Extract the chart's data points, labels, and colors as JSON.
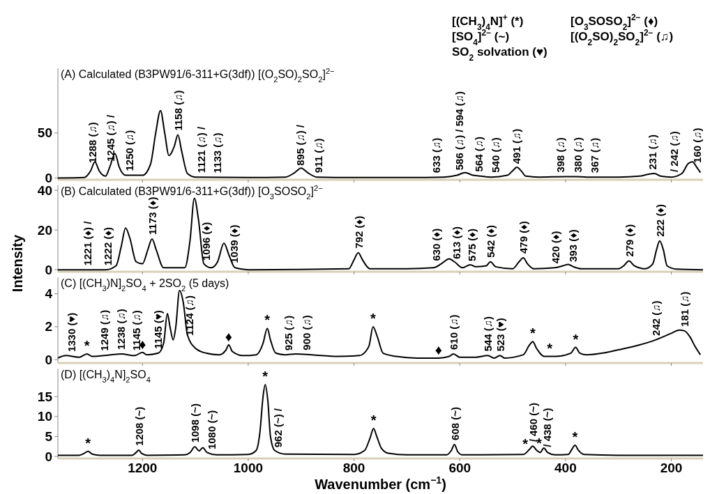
{
  "chart_data": [
    {
      "type": "line",
      "title": "(A) Calculated (B3PW91/6-311+G(3df)) [(O$_{2}$SO)$_{2}$SO$_{2}$]$^{2−}$",
      "ylabel": "Intensity",
      "xlim": [
        1360,
        140
      ],
      "xticks": [
        1200,
        1000,
        800,
        600,
        400,
        200
      ],
      "ylim": [
        -2,
        122
      ],
      "yticks": [
        0,
        50
      ],
      "tick_labels": "y",
      "series": [
        {
          "color": "#000000",
          "x": [
            1360,
            1310,
            1298,
            1290,
            1282,
            1270,
            1262,
            1252,
            1244,
            1232,
            1200,
            1185,
            1175,
            1166,
            1158,
            1150,
            1140,
            1133,
            1126,
            1115,
            1100,
            1000,
            930,
            912,
            900,
            888,
            870,
            800,
            700,
            630,
            605,
            590,
            575,
            560,
            540,
            510,
            500,
            492,
            484,
            475,
            450,
            400,
            380,
            360,
            300,
            260,
            245,
            232,
            220,
            200,
            180,
            168,
            160,
            152,
            145
          ],
          "values": [
            0,
            0.5,
            8,
            18,
            8,
            2,
            12,
            27,
            12,
            3,
            3,
            15,
            50,
            75,
            50,
            25,
            35,
            48,
            30,
            5,
            1,
            0.5,
            1,
            6,
            11,
            6,
            1,
            0.5,
            0.5,
            1,
            3,
            6,
            3,
            2,
            1,
            3,
            8,
            12,
            8,
            2,
            1,
            1.5,
            1.5,
            1,
            1,
            2,
            4,
            5,
            2,
            1,
            5,
            16,
            18,
            12,
            6
          ]
        }
      ],
      "annotations": [
        "[(CH$_{3}$)$_{4}$N]$^{+}$ (*)",
        "[SO$_{4}$]$^{2−}$ (~)",
        "SO$_{2}$ solvation (♥)",
        "[O$_{3}$SOSO$_{2}$]$^{2−}$ (♦)",
        "[(O$_{2}$SO)$_{2}$SO$_{2}$]$^{2−}$ (♫)",
        {
          "text": "1288 (♫)",
          "x": 1295,
          "y": 12
        },
        {
          "text": "1245 (♫) /",
          "x": 1261,
          "y": 13.5
        },
        {
          "text": "1250 (♫)",
          "x": 1225,
          "y": 3
        },
        {
          "text": "1158 (♫)",
          "x": 1133,
          "y": 48
        },
        {
          "text": "1121 (♫) /",
          "x": 1089,
          "y": 1
        },
        {
          "text": "1133 (♫)",
          "x": 1059,
          "y": 0.8
        },
        {
          "text": "895 (♫) /",
          "x": 902,
          "y": 9
        },
        {
          "text": "911 (♫)",
          "x": 868,
          "y": 1
        },
        {
          "text": "633 (♫)",
          "x": 645,
          "y": 1
        },
        {
          "text": "586 (♫) / 594 (♫)",
          "x": 601,
          "y": 4
        },
        {
          "text": "564 (♫)",
          "x": 565,
          "y": 2.3
        },
        {
          "text": "540 (♫)",
          "x": 533,
          "y": 1.3
        },
        {
          "text": "491 (♫)",
          "x": 494,
          "y": 11
        },
        {
          "text": "398 (♫)",
          "x": 410,
          "y": 1.4
        },
        {
          "text": "380 (♫)",
          "x": 378,
          "y": 1.5
        },
        {
          "text": "367 (♫)",
          "x": 346,
          "y": 1
        },
        {
          "text": "231 (♫)",
          "x": 236,
          "y": 4.6
        },
        {
          "text": "/ 242 (♫)",
          "x": 196,
          "y": 1.8
        },
        {
          "text": "160 (♫)",
          "x": 152,
          "y": 12
        }
      ]
    },
    {
      "type": "line",
      "title": "(B) Calculated (B3PW91/6-311+G(3df)) [O$_{3}$SOSO$_{2}$]$^{2−}$",
      "xlim": [
        1360,
        140
      ],
      "xticks": [
        1200,
        1000,
        800,
        600,
        400,
        200
      ],
      "ylim": [
        -1,
        42.5
      ],
      "yticks": [
        0,
        20,
        40
      ],
      "tick_labels": "y",
      "series": [
        {
          "color": "#000000",
          "x": [
            1360,
            1270,
            1250,
            1240,
            1232,
            1224,
            1212,
            1200,
            1190,
            1182,
            1174,
            1160,
            1120,
            1110,
            1102,
            1094,
            1084,
            1070,
            1058,
            1046,
            1036,
            1025,
            1000,
            810,
            800,
            792,
            784,
            770,
            700,
            650,
            635,
            620,
            610,
            595,
            580,
            570,
            550,
            542,
            532,
            500,
            488,
            480,
            472,
            460,
            420,
            405,
            395,
            385,
            370,
            300,
            290,
            280,
            270,
            250,
            235,
            228,
            222,
            215,
            208,
            190,
            140
          ],
          "values": [
            0,
            0,
            2,
            12,
            21,
            16,
            4,
            3,
            10,
            15.5,
            10,
            1,
            1,
            15,
            36,
            25,
            3,
            1,
            4,
            13.4,
            7,
            1,
            0,
            0.5,
            5,
            8.6,
            5,
            0.5,
            0.5,
            1,
            3,
            5.5,
            4,
            1,
            2.5,
            1.5,
            2,
            4,
            1.5,
            0.5,
            4,
            6,
            3,
            0.5,
            1,
            2,
            2.7,
            1.5,
            0.5,
            0.5,
            2,
            4.4,
            2,
            0.5,
            3,
            10,
            14.5,
            10,
            2,
            0.3,
            0
          ]
        }
      ],
      "annotations": [
        {
          "text": "1221 (♦) /",
          "x": 1305,
          "y": 0
        },
        {
          "text": "1222 (♦)",
          "x": 1267,
          "y": 0
        },
        {
          "text": "1173 (♦)",
          "x": 1182,
          "y": 15.5
        },
        {
          "text": "1096 (♦)",
          "x": 1080,
          "y": 2.5
        },
        {
          "text": "1039 (♦)",
          "x": 1027,
          "y": 1.2
        },
        {
          "text": "792 (♦)",
          "x": 792,
          "y": 8.6
        },
        {
          "text": "630 (♦)",
          "x": 645,
          "y": 2.3
        },
        {
          "text": "613 (♦)",
          "x": 607,
          "y": 3.3
        },
        {
          "text": "575 (♦)",
          "x": 578,
          "y": 2.2
        },
        {
          "text": "542 (♦)",
          "x": 542,
          "y": 4
        },
        {
          "text": "479 (♦)",
          "x": 480,
          "y": 6
        },
        {
          "text": "420 (♦)",
          "x": 419,
          "y": 1
        },
        {
          "text": "393 (♦)",
          "x": 387,
          "y": 1.8
        },
        {
          "text": "279 (♦)",
          "x": 280,
          "y": 4.4
        },
        {
          "text": "222 (♦)",
          "x": 222,
          "y": 14.5
        }
      ]
    },
    {
      "type": "line",
      "title": "(C) [(CH$_{3}$)N]$_{2}$SO$_{4}$ + 2SO$_{2}$ (5 days)",
      "xlim": [
        1360,
        140
      ],
      "xticks": [
        1200,
        1000,
        800,
        600,
        400,
        200
      ],
      "ylim": [
        -0.2,
        5
      ],
      "yticks": [
        0,
        2,
        4
      ],
      "tick_labels": "y",
      "series": [
        {
          "color": "#000000",
          "x": [
            1360,
            1345,
            1320,
            1305,
            1295,
            1260,
            1240,
            1215,
            1200,
            1192,
            1170,
            1160,
            1153,
            1148,
            1142,
            1137,
            1130,
            1123,
            1115,
            1100,
            1080,
            1055,
            1042,
            1037,
            1030,
            1010,
            985,
            972,
            964,
            958,
            948,
            930,
            910,
            880,
            830,
            790,
            772,
            764,
            756,
            745,
            720,
            680,
            640,
            620,
            612,
            600,
            570,
            547,
            535,
            524,
            515,
            480,
            468,
            462,
            455,
            440,
            420,
            390,
            381,
            373,
            360,
            330,
            300,
            260,
            230,
            200,
            185,
            175,
            165,
            155,
            145
          ],
          "values": [
            0.1,
            0.25,
            0.15,
            0.35,
            0.2,
            0.3,
            0.35,
            0.25,
            0.45,
            0.3,
            0.4,
            1.0,
            2.8,
            2.0,
            1.2,
            2.0,
            4.2,
            3.5,
            1.5,
            0.7,
            0.4,
            0.3,
            0.6,
            0.9,
            0.5,
            0.25,
            0.3,
            1.0,
            1.9,
            1.2,
            0.4,
            0.3,
            0.35,
            0.3,
            0.2,
            0.25,
            0.8,
            2.0,
            1.4,
            0.4,
            0.2,
            0.1,
            0.1,
            0.2,
            0.35,
            0.15,
            0.15,
            0.25,
            0.1,
            0.25,
            0.1,
            0.3,
            0.9,
            1.1,
            0.7,
            0.2,
            0.2,
            0.4,
            0.75,
            0.4,
            0.3,
            0.4,
            0.6,
            0.9,
            1.2,
            1.6,
            1.8,
            1.75,
            1.4,
            0.8,
            0.3
          ]
        }
      ],
      "annotations": [
        {
          "text": "1330 (♥)",
          "x": 1335,
          "y": 0.22
        },
        {
          "text": "*",
          "x": 1305,
          "y": 0.35
        },
        {
          "text": "1249 (♫)",
          "x": 1273,
          "y": 0.28
        },
        {
          "text": "1238 (♫)",
          "x": 1241,
          "y": 0.35
        },
        {
          "text": "♦",
          "x": 1200,
          "y": 0.45
        },
        {
          "text": "1145 (♫)",
          "x": 1212,
          "y": 0.3
        },
        {
          "text": "1145 (♥)",
          "x": 1171,
          "y": 0.4
        },
        {
          "text": "1124 (♫)",
          "x": 1112,
          "y": 1.2
        },
        {
          "text": "♦",
          "x": 1037,
          "y": 0.9
        },
        {
          "text": "*",
          "x": 964,
          "y": 1.9
        },
        {
          "text": "925 (♫)",
          "x": 925,
          "y": 0.3
        },
        {
          "text": "900 (♫)",
          "x": 891,
          "y": 0.32
        },
        {
          "text": "*",
          "x": 764,
          "y": 2.0
        },
        {
          "text": "♦",
          "x": 640,
          "y": 0.1
        },
        {
          "text": "610 (♫)",
          "x": 612,
          "y": 0.35
        },
        {
          "text": "544 (♫)",
          "x": 547,
          "y": 0.25
        },
        {
          "text": "523 (♥)",
          "x": 524,
          "y": 0.25
        },
        {
          "text": "*",
          "x": 462,
          "y": 1.1
        },
        {
          "text": "*",
          "x": 430,
          "y": 0.2
        },
        {
          "text": "*",
          "x": 381,
          "y": 0.75
        },
        {
          "text": "242 (♫)",
          "x": 230,
          "y": 1.2
        },
        {
          "text": "181 (♫)",
          "x": 175,
          "y": 1.75
        }
      ]
    },
    {
      "type": "line",
      "title": "(D) [(CH$_{3}$)$_{4}$N]$_{2}$SO$_{4}$",
      "xlabel": "Wavenumber (cm$^{−1}$)",
      "xlim": [
        1360,
        140
      ],
      "xticks": [
        1200,
        1000,
        800,
        600,
        400,
        200
      ],
      "ylim": [
        -0.5,
        22
      ],
      "yticks": [
        0,
        5,
        10,
        15
      ],
      "series": [
        {
          "color": "#000000",
          "x": [
            1360,
            1320,
            1310,
            1303,
            1295,
            1280,
            1220,
            1212,
            1207,
            1202,
            1190,
            1120,
            1110,
            1101,
            1093,
            1086,
            1078,
            1060,
            1000,
            985,
            978,
            972,
            968,
            963,
            958,
            950,
            930,
            800,
            780,
            770,
            763,
            757,
            748,
            735,
            700,
            625,
            616,
            610,
            604,
            595,
            480,
            468,
            462,
            455,
            448,
            441,
            434,
            420,
            395,
            388,
            382,
            376,
            365,
            300,
            200,
            140
          ],
          "values": [
            0.3,
            0.3,
            0.8,
            1.3,
            0.6,
            0.3,
            0.3,
            1.0,
            1.6,
            0.8,
            0.3,
            0.4,
            1.0,
            2.4,
            1.4,
            2.2,
            1.0,
            0.4,
            0.5,
            1.5,
            6,
            15,
            18,
            14,
            5,
            1.5,
            0.6,
            0.5,
            1.5,
            4.5,
            7,
            5,
            2,
            0.8,
            0.4,
            0.4,
            1.5,
            3,
            1.2,
            0.4,
            0.5,
            1.8,
            2.6,
            1.6,
            1.0,
            2.1,
            1.0,
            0.4,
            0.5,
            1.8,
            2.8,
            1.6,
            0.5,
            0.3,
            0.3,
            0.3
          ]
        }
      ],
      "annotations": [
        {
          "text": "*",
          "x": 1303,
          "y": 1.3
        },
        {
          "text": "1208 (~)",
          "x": 1207,
          "y": 1.6
        },
        {
          "text": "1098 (~)",
          "x": 1101,
          "y": 2.4
        },
        {
          "text": "1080 (~)",
          "x": 1070,
          "y": 0.7
        },
        {
          "text": "*",
          "x": 968,
          "y": 18
        },
        {
          "text": "962 (~) /",
          "x": 945,
          "y": 1.2
        },
        {
          "text": "*",
          "x": 763,
          "y": 7
        },
        {
          "text": "608 (~)",
          "x": 610,
          "y": 3
        },
        {
          "text": "*",
          "x": 476,
          "y": 1.0
        },
        {
          "text": "/ 460 (~)",
          "x": 462,
          "y": 2.6
        },
        {
          "text": "*",
          "x": 450,
          "y": 1.2
        },
        {
          "text": "/ 438 (~)",
          "x": 436,
          "y": 1.3
        },
        {
          "text": "*",
          "x": 382,
          "y": 2.8
        }
      ]
    }
  ]
}
